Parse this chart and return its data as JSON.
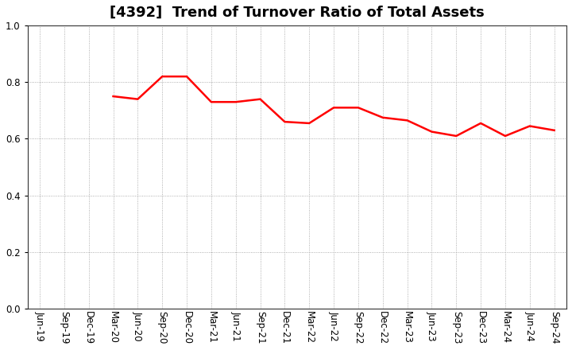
{
  "title": "[4392]  Trend of Turnover Ratio of Total Assets",
  "line_color": "#ff0000",
  "line_width": 1.8,
  "background_color": "#ffffff",
  "grid_color": "#999999",
  "ylim": [
    0.0,
    1.0
  ],
  "yticks": [
    0.0,
    0.2,
    0.4,
    0.6,
    0.8,
    1.0
  ],
  "labels": [
    "Jun-19",
    "Sep-19",
    "Dec-19",
    "Mar-20",
    "Jun-20",
    "Sep-20",
    "Dec-20",
    "Mar-21",
    "Jun-21",
    "Sep-21",
    "Dec-21",
    "Mar-22",
    "Jun-22",
    "Sep-22",
    "Dec-22",
    "Mar-23",
    "Jun-23",
    "Sep-23",
    "Dec-23",
    "Mar-24",
    "Jun-24",
    "Sep-24"
  ],
  "values": [
    null,
    null,
    null,
    0.75,
    0.74,
    0.82,
    0.82,
    0.73,
    0.73,
    0.74,
    0.66,
    0.655,
    0.71,
    0.71,
    0.675,
    0.665,
    0.625,
    0.61,
    0.655,
    0.61,
    0.645,
    0.63
  ],
  "title_fontsize": 13,
  "tick_fontsize": 8.5
}
